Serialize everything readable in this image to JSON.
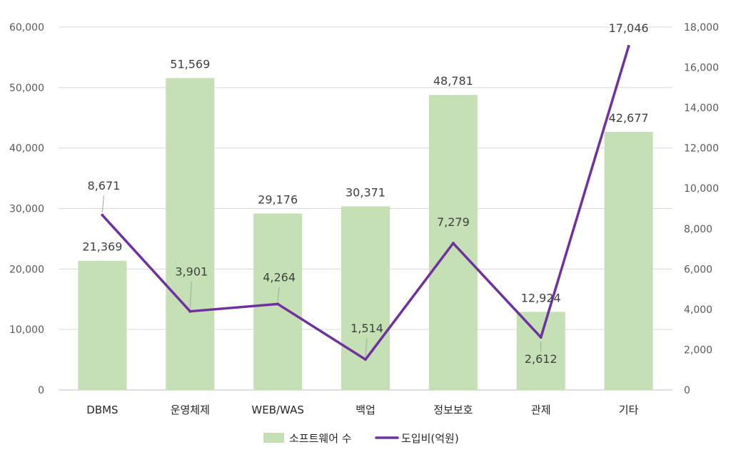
{
  "chart_data": {
    "type": "bar",
    "categories": [
      "DBMS",
      "운영체제",
      "WEB/WAS",
      "백업",
      "정보보호",
      "관제",
      "기타"
    ],
    "series": [
      {
        "name": "소프트웨어 수",
        "type": "bar",
        "axis": "left",
        "color": "#c5e0b4",
        "values": [
          21369,
          51569,
          29176,
          30371,
          48781,
          12924,
          42677
        ],
        "labels": [
          "21,369",
          "51,569",
          "29,176",
          "30,371",
          "48,781",
          "12,924",
          "42,677"
        ]
      },
      {
        "name": "도입비(억원)",
        "type": "line",
        "axis": "right",
        "color": "#7030a0",
        "values": [
          8671,
          3901,
          4264,
          1514,
          7279,
          2612,
          17046
        ],
        "labels": [
          "8,671",
          "3,901",
          "4,264",
          "1,514",
          "7,279",
          "2,612",
          "17,046"
        ]
      }
    ],
    "y_left": {
      "min": 0,
      "max": 60000,
      "ticks": [
        0,
        10000,
        20000,
        30000,
        40000,
        50000,
        60000
      ],
      "tick_labels": [
        "0",
        "10,000",
        "20,000",
        "30,000",
        "40,000",
        "50,000",
        "60,000"
      ]
    },
    "y_right": {
      "min": 0,
      "max": 18000,
      "ticks": [
        0,
        2000,
        4000,
        6000,
        8000,
        10000,
        12000,
        14000,
        16000,
        18000
      ],
      "tick_labels": [
        "0",
        "2,000",
        "4,000",
        "6,000",
        "8,000",
        "10,000",
        "12,000",
        "14,000",
        "16,000",
        "18,000"
      ]
    },
    "grid": true,
    "legend_position": "bottom",
    "title": "",
    "xlabel": "",
    "ylabel": ""
  }
}
